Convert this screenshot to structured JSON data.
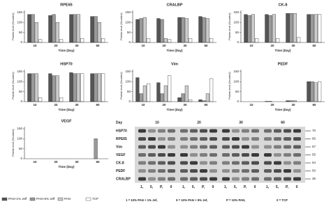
{
  "chart_data": [
    {
      "type": "bar",
      "title": "RPE65",
      "xlabel": "Time (Day)",
      "ylabel": "Protein level (%control)",
      "categories": [
        "10",
        "20",
        "30",
        "60"
      ],
      "ylim": [
        0,
        160
      ],
      "yticks": [
        0,
        50,
        100,
        150
      ],
      "series": [
        {
          "name": "PAN+1% Jeff",
          "color": "#555555",
          "values": [
            140,
            135,
            140,
            130
          ]
        },
        {
          "name": "PAN+5% Jeff",
          "color": "#999999",
          "values": [
            140,
            140,
            140,
            130
          ]
        },
        {
          "name": "PAN",
          "color": "#cccccc",
          "values": [
            100,
            100,
            140,
            100
          ]
        },
        {
          "name": "TCP",
          "color": "#ffffff",
          "values": [
            15,
            15,
            20,
            20
          ]
        }
      ]
    },
    {
      "type": "bar",
      "title": "CRALBP",
      "xlabel": "Time (Day)",
      "ylabel": "Protein level (%control)",
      "categories": [
        "10",
        "20",
        "30",
        "60"
      ],
      "ylim": [
        0,
        160
      ],
      "yticks": [
        0,
        50,
        100,
        150
      ],
      "series": [
        {
          "name": "PAN+1% Jeff",
          "color": "#555555",
          "values": [
            115,
            120,
            125,
            130
          ]
        },
        {
          "name": "PAN+5% Jeff",
          "color": "#999999",
          "values": [
            120,
            115,
            125,
            125
          ]
        },
        {
          "name": "PAN",
          "color": "#cccccc",
          "values": [
            125,
            20,
            120,
            120
          ]
        },
        {
          "name": "TCP",
          "color": "#ffffff",
          "values": [
            20,
            15,
            20,
            20
          ]
        }
      ]
    },
    {
      "type": "bar",
      "title": "CK-8",
      "xlabel": "Time (Day)",
      "ylabel": "Protein level (%control)",
      "categories": [
        "10",
        "20",
        "30",
        "60"
      ],
      "ylim": [
        0,
        160
      ],
      "yticks": [
        0,
        50,
        100,
        150
      ],
      "series": [
        {
          "name": "PAN+1% Jeff",
          "color": "#555555",
          "values": [
            140,
            140,
            145,
            140
          ]
        },
        {
          "name": "PAN+5% Jeff",
          "color": "#999999",
          "values": [
            135,
            135,
            145,
            140
          ]
        },
        {
          "name": "PAN",
          "color": "#cccccc",
          "values": [
            140,
            140,
            145,
            140
          ]
        },
        {
          "name": "TCP",
          "color": "#ffffff",
          "values": [
            20,
            20,
            25,
            140
          ]
        }
      ]
    },
    {
      "type": "bar",
      "title": "HSP70",
      "xlabel": "Time (Day)",
      "ylabel": "Protein level (%control)",
      "categories": [
        "10",
        "20",
        "30",
        "60"
      ],
      "ylim": [
        0,
        160
      ],
      "yticks": [
        0,
        50,
        100,
        150
      ],
      "series": [
        {
          "name": "PAN+1% Jeff",
          "color": "#555555",
          "values": [
            140,
            140,
            145,
            140
          ]
        },
        {
          "name": "PAN+5% Jeff",
          "color": "#999999",
          "values": [
            140,
            130,
            140,
            140
          ]
        },
        {
          "name": "PAN",
          "color": "#cccccc",
          "values": [
            140,
            130,
            140,
            140
          ]
        },
        {
          "name": "TCP",
          "color": "#ffffff",
          "values": [
            20,
            20,
            140,
            140
          ]
        }
      ]
    },
    {
      "type": "bar",
      "title": "Vim",
      "xlabel": "Time (Day)",
      "ylabel": "Protein level (%control)",
      "categories": [
        "10",
        "20",
        "30",
        "60"
      ],
      "ylim": [
        0,
        160
      ],
      "yticks": [
        0,
        50,
        100,
        150
      ],
      "series": [
        {
          "name": "PAN+1% Jeff",
          "color": "#555555",
          "values": [
            120,
            95,
            20,
            10
          ]
        },
        {
          "name": "PAN+5% Jeff",
          "color": "#999999",
          "values": [
            40,
            40,
            40,
            5
          ]
        },
        {
          "name": "PAN",
          "color": "#cccccc",
          "values": [
            80,
            80,
            80,
            40
          ]
        },
        {
          "name": "TCP",
          "color": "#ffffff",
          "values": [
            90,
            130,
            10,
            115
          ]
        }
      ]
    },
    {
      "type": "bar",
      "title": "PEDF",
      "xlabel": "Time (Day)",
      "ylabel": "Protein level (%control)",
      "categories": [
        "10",
        "20",
        "30",
        "60"
      ],
      "ylim": [
        0,
        160
      ],
      "yticks": [
        0,
        50,
        100,
        150
      ],
      "series": [
        {
          "name": "PAN+1% Jeff",
          "color": "#555555",
          "values": [
            0,
            2,
            5,
            100
          ]
        },
        {
          "name": "PAN+5% Jeff",
          "color": "#999999",
          "values": [
            0,
            2,
            5,
            100
          ]
        },
        {
          "name": "PAN",
          "color": "#cccccc",
          "values": [
            0,
            0,
            5,
            95
          ]
        },
        {
          "name": "TCP",
          "color": "#ffffff",
          "values": [
            0,
            0,
            0,
            100
          ]
        }
      ]
    },
    {
      "type": "bar",
      "title": "VEGF",
      "xlabel": "Time (Day)",
      "ylabel": "Protein level (%control)",
      "categories": [
        "10",
        "20",
        "30",
        "60"
      ],
      "ylim": [
        0,
        160
      ],
      "yticks": [
        0,
        50,
        100,
        150
      ],
      "series": [
        {
          "name": "PAN+1% Jeff",
          "color": "#555555",
          "values": [
            0,
            0,
            0,
            0
          ]
        },
        {
          "name": "PAN+5% Jeff",
          "color": "#999999",
          "values": [
            0,
            0,
            0,
            100
          ]
        },
        {
          "name": "PAN",
          "color": "#cccccc",
          "values": [
            0,
            0,
            0,
            0
          ]
        },
        {
          "name": "TCP",
          "color": "#ffffff",
          "values": [
            0,
            0,
            0,
            0
          ]
        }
      ]
    }
  ],
  "blot": {
    "day_label": "Day",
    "days": [
      "10",
      "20",
      "30",
      "60"
    ],
    "proteins": [
      "HSP70",
      "RPE65",
      "Vim",
      "VEGF",
      "CK-8",
      "PEDF",
      "CRALBP"
    ],
    "weights": [
      70,
      65,
      57,
      55,
      54,
      50,
      36
    ],
    "lanes": [
      "1,",
      "5,",
      "P,",
      "0"
    ],
    "key": [
      "1 = 10% PAN + 1% Jef,",
      "5 = 10% PAN + 5% Jef,",
      "P = 10% PAN,",
      "0 = TCP"
    ]
  }
}
